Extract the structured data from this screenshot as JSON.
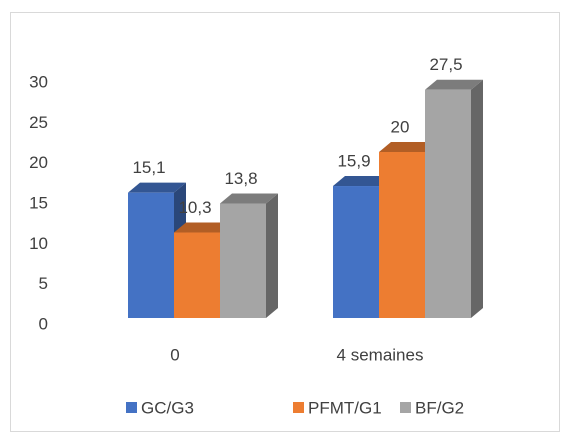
{
  "chart_data": {
    "type": "bar3d",
    "categories": [
      "0",
      "4 semaines"
    ],
    "series": [
      {
        "name": "GC/G3",
        "color": "#4472c4",
        "values": [
          15.1,
          15.9
        ],
        "value_labels": [
          "15,1",
          "15,9"
        ]
      },
      {
        "name": "PFMT/G1",
        "color": "#ed7d31",
        "values": [
          10.3,
          20
        ],
        "value_labels": [
          "10,3",
          "20"
        ]
      },
      {
        "name": "BF/G2",
        "color": "#a5a5a5",
        "values": [
          13.8,
          27.5
        ],
        "value_labels": [
          "13,8",
          "27,5"
        ]
      }
    ],
    "ylim": [
      0,
      30
    ],
    "yticks": [
      0,
      5,
      10,
      15,
      20,
      25,
      30
    ],
    "grid": false,
    "legend": "bottom"
  }
}
